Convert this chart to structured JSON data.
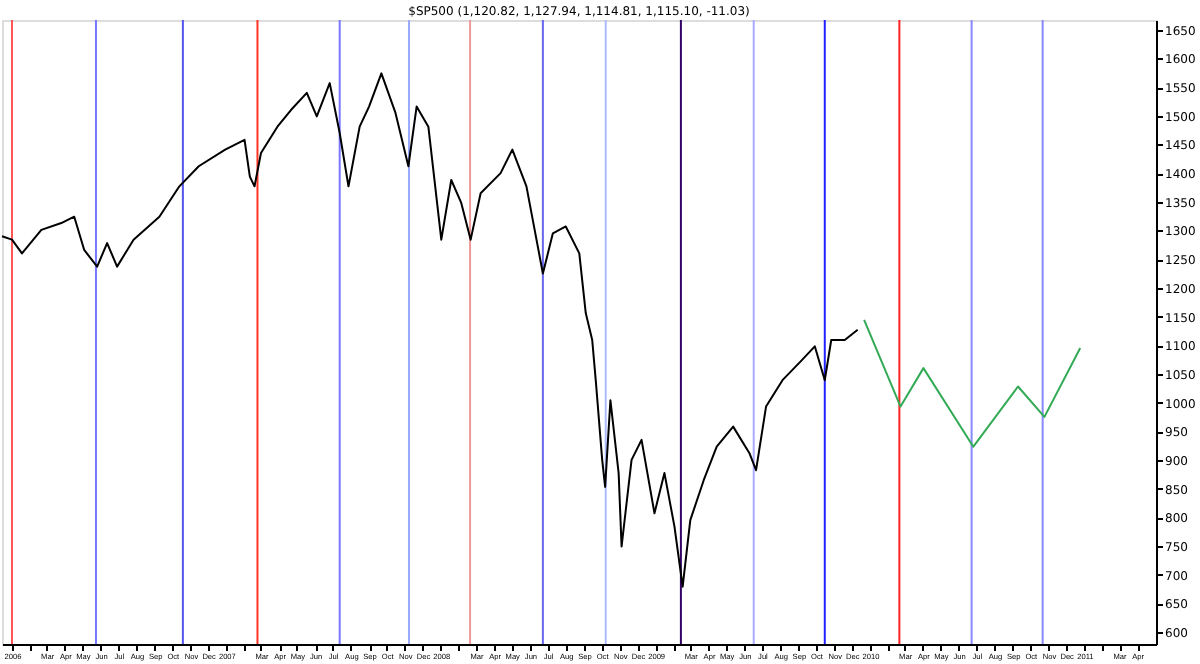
{
  "chart_data": {
    "type": "line",
    "title": "$SP500 (1,120.82, 1,127.94, 1,114.81, 1,115.10, -11.03)",
    "grid": false,
    "marker": "none",
    "line_style": "solid",
    "xlim": [
      "2005-12-15",
      "2011-05-03"
    ],
    "ylim": [
      579,
      1667
    ],
    "yticks": [
      600,
      650,
      700,
      750,
      800,
      850,
      900,
      950,
      1000,
      1050,
      1100,
      1150,
      1200,
      1250,
      1300,
      1350,
      1400,
      1450,
      1500,
      1550,
      1600,
      1650
    ],
    "xticks": [
      {
        "value": "2006-01-01",
        "label": "2006"
      },
      {
        "value": "2006-02-01",
        "label": null
      },
      {
        "value": "2006-03-01",
        "label": "Mar"
      },
      {
        "value": "2006-04-01",
        "label": "Apr"
      },
      {
        "value": "2006-05-01",
        "label": "May"
      },
      {
        "value": "2006-06-01",
        "label": "Jun"
      },
      {
        "value": "2006-07-01",
        "label": "Jul"
      },
      {
        "value": "2006-08-01",
        "label": "Aug"
      },
      {
        "value": "2006-09-01",
        "label": "Sep"
      },
      {
        "value": "2006-10-01",
        "label": "Oct"
      },
      {
        "value": "2006-11-01",
        "label": "Nov"
      },
      {
        "value": "2006-12-01",
        "label": "Dec"
      },
      {
        "value": "2007-01-01",
        "label": "2007"
      },
      {
        "value": "2007-02-01",
        "label": null
      },
      {
        "value": "2007-03-01",
        "label": "Mar"
      },
      {
        "value": "2007-04-01",
        "label": "Apr"
      },
      {
        "value": "2007-05-01",
        "label": "May"
      },
      {
        "value": "2007-06-01",
        "label": "Jun"
      },
      {
        "value": "2007-07-01",
        "label": "Jul"
      },
      {
        "value": "2007-08-01",
        "label": "Aug"
      },
      {
        "value": "2007-09-01",
        "label": "Sep"
      },
      {
        "value": "2007-10-01",
        "label": "Oct"
      },
      {
        "value": "2007-11-01",
        "label": "Nov"
      },
      {
        "value": "2007-12-01",
        "label": "Dec"
      },
      {
        "value": "2008-01-01",
        "label": "2008"
      },
      {
        "value": "2008-02-01",
        "label": null
      },
      {
        "value": "2008-03-01",
        "label": "Mar"
      },
      {
        "value": "2008-04-01",
        "label": "Apr"
      },
      {
        "value": "2008-05-01",
        "label": "May"
      },
      {
        "value": "2008-06-01",
        "label": "Jun"
      },
      {
        "value": "2008-07-01",
        "label": "Jul"
      },
      {
        "value": "2008-08-01",
        "label": "Aug"
      },
      {
        "value": "2008-09-01",
        "label": "Sep"
      },
      {
        "value": "2008-10-01",
        "label": "Oct"
      },
      {
        "value": "2008-11-01",
        "label": "Nov"
      },
      {
        "value": "2008-12-01",
        "label": "Dec"
      },
      {
        "value": "2009-01-01",
        "label": "2009"
      },
      {
        "value": "2009-02-01",
        "label": null
      },
      {
        "value": "2009-03-01",
        "label": "Mar"
      },
      {
        "value": "2009-04-01",
        "label": "Apr"
      },
      {
        "value": "2009-05-01",
        "label": "May"
      },
      {
        "value": "2009-06-01",
        "label": "Jun"
      },
      {
        "value": "2009-07-01",
        "label": "Jul"
      },
      {
        "value": "2009-08-01",
        "label": "Aug"
      },
      {
        "value": "2009-09-01",
        "label": "Sep"
      },
      {
        "value": "2009-10-01",
        "label": "Oct"
      },
      {
        "value": "2009-11-01",
        "label": "Nov"
      },
      {
        "value": "2009-12-01",
        "label": "Dec"
      },
      {
        "value": "2010-01-01",
        "label": "2010"
      },
      {
        "value": "2010-02-01",
        "label": null
      },
      {
        "value": "2010-03-01",
        "label": "Mar"
      },
      {
        "value": "2010-04-01",
        "label": "Apr"
      },
      {
        "value": "2010-05-01",
        "label": "May"
      },
      {
        "value": "2010-06-01",
        "label": "Jun"
      },
      {
        "value": "2010-07-01",
        "label": "Jul"
      },
      {
        "value": "2010-08-01",
        "label": "Aug"
      },
      {
        "value": "2010-09-01",
        "label": "Sep"
      },
      {
        "value": "2010-10-01",
        "label": "Oct"
      },
      {
        "value": "2010-11-01",
        "label": "Nov"
      },
      {
        "value": "2010-12-01",
        "label": "Dec"
      },
      {
        "value": "2011-01-01",
        "label": "2011"
      },
      {
        "value": "2011-02-01",
        "label": null
      },
      {
        "value": "2011-03-01",
        "label": "Mar"
      },
      {
        "value": "2011-04-01",
        "label": "Apr"
      }
    ],
    "ref_lines": [
      {
        "axis": "x",
        "value": "2006-01-01",
        "color": "#ff5555"
      },
      {
        "axis": "x",
        "value": "2006-05-24",
        "color": "#7777ff"
      },
      {
        "axis": "x",
        "value": "2006-10-19",
        "color": "#5555ee"
      },
      {
        "axis": "x",
        "value": "2007-02-23",
        "color": "#ff3322"
      },
      {
        "axis": "x",
        "value": "2007-07-13",
        "color": "#7777ff"
      },
      {
        "axis": "x",
        "value": "2007-11-08",
        "color": "#99aaff"
      },
      {
        "axis": "x",
        "value": "2008-02-20",
        "color": "#ee9999"
      },
      {
        "axis": "x",
        "value": "2008-06-23",
        "color": "#6666ee"
      },
      {
        "axis": "x",
        "value": "2008-10-08",
        "color": "#aabbff"
      },
      {
        "axis": "x",
        "value": "2009-02-13",
        "color": "#330066"
      },
      {
        "axis": "x",
        "value": "2009-06-17",
        "color": "#aaaaff"
      },
      {
        "axis": "x",
        "value": "2009-10-16",
        "color": "#2222ff"
      },
      {
        "axis": "x",
        "value": "2010-02-20",
        "color": "#ff2222"
      },
      {
        "axis": "x",
        "value": "2010-06-23",
        "color": "#8888ff"
      },
      {
        "axis": "x",
        "value": "2010-10-22",
        "color": "#8888ff"
      }
    ],
    "series": [
      {
        "color": "#000000",
        "x": [
          "2005-12-15",
          "2006-01-01",
          "2006-01-18",
          "2006-02-20",
          "2006-03-26",
          "2006-04-17",
          "2006-05-04",
          "2006-05-26",
          "2006-06-12",
          "2006-06-29",
          "2006-07-27",
          "2006-09-09",
          "2006-10-13",
          "2006-11-15",
          "2006-12-30",
          "2007-02-01",
          "2007-02-10",
          "2007-02-18",
          "2007-03-01",
          "2007-03-29",
          "2007-04-21",
          "2007-05-18",
          "2007-06-04",
          "2007-06-26",
          "2007-07-13",
          "2007-07-28",
          "2007-08-16",
          "2007-09-01",
          "2007-09-22",
          "2007-10-16",
          "2007-11-07",
          "2007-11-21",
          "2007-12-11",
          "2008-01-02",
          "2008-01-19",
          "2008-02-05",
          "2008-02-21",
          "2008-03-09",
          "2008-04-12",
          "2008-05-02",
          "2008-05-26",
          "2008-06-23",
          "2008-07-10",
          "2008-08-01",
          "2008-08-24",
          "2008-09-04",
          "2008-09-15",
          "2008-09-21",
          "2008-10-02",
          "2008-10-07",
          "2008-10-16",
          "2008-10-30",
          "2008-11-04",
          "2008-11-21",
          "2008-12-08",
          "2008-12-30",
          "2009-01-16",
          "2009-02-02",
          "2009-02-16",
          "2009-03-01",
          "2009-03-24",
          "2009-04-15",
          "2009-05-13",
          "2009-06-10",
          "2009-06-21",
          "2009-07-08",
          "2009-08-05",
          "2009-09-07",
          "2009-09-29",
          "2009-10-16",
          "2009-10-27",
          "2009-11-19",
          "2009-12-11"
        ],
        "values": [
          1290,
          1284,
          1260,
          1301,
          1313,
          1324,
          1266,
          1237,
          1278,
          1237,
          1284,
          1324,
          1377,
          1412,
          1441,
          1458,
          1394,
          1377,
          1435,
          1481,
          1510,
          1540,
          1499,
          1557,
          1470,
          1377,
          1481,
          1516,
          1574,
          1505,
          1412,
          1516,
          1481,
          1284,
          1388,
          1348,
          1284,
          1365,
          1400,
          1441,
          1377,
          1225,
          1295,
          1307,
          1260,
          1156,
          1109,
          1039,
          900,
          853,
          1004,
          877,
          749,
          900,
          935,
          807,
          877,
          784,
          679,
          795,
          865,
          923,
          958,
          911,
          882,
          993,
          1039,
          1074,
          1098,
          1039,
          1109,
          1109,
          1127
        ]
      },
      {
        "color": "#33aa55",
        "x": [
          "2009-12-22",
          "2010-02-22",
          "2010-04-02",
          "2010-06-26",
          "2010-09-10",
          "2010-10-25",
          "2010-12-25"
        ],
        "values": [
          1144,
          993,
          1060,
          923,
          1028,
          975,
          1095
        ]
      }
    ]
  }
}
